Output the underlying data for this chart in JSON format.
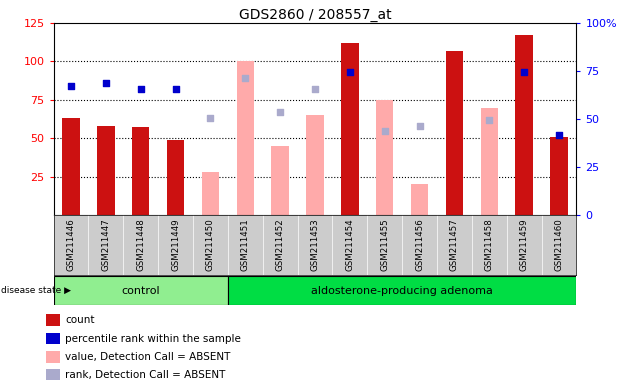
{
  "title": "GDS2860 / 208557_at",
  "samples": [
    "GSM211446",
    "GSM211447",
    "GSM211448",
    "GSM211449",
    "GSM211450",
    "GSM211451",
    "GSM211452",
    "GSM211453",
    "GSM211454",
    "GSM211455",
    "GSM211456",
    "GSM211457",
    "GSM211458",
    "GSM211459",
    "GSM211460"
  ],
  "count": [
    63,
    58,
    57,
    49,
    null,
    null,
    null,
    null,
    112,
    null,
    null,
    107,
    null,
    117,
    51
  ],
  "percentile_rank": [
    84,
    86,
    82,
    82,
    null,
    null,
    null,
    null,
    93,
    null,
    null,
    null,
    null,
    93,
    52
  ],
  "absent_value": [
    null,
    null,
    null,
    null,
    28,
    100,
    45,
    65,
    null,
    75,
    20,
    null,
    70,
    null,
    null
  ],
  "absent_rank": [
    null,
    null,
    null,
    null,
    63,
    89,
    67,
    82,
    null,
    55,
    58,
    null,
    62,
    null,
    null
  ],
  "detection_absent": [
    false,
    false,
    false,
    false,
    true,
    true,
    true,
    true,
    false,
    true,
    true,
    false,
    true,
    false,
    false
  ],
  "control_count": 5,
  "adenoma_count": 10,
  "ylim_left": [
    0,
    125
  ],
  "ylim_right": [
    0,
    100
  ],
  "yticks_left": [
    25,
    50,
    75,
    100,
    125
  ],
  "yticks_right": [
    0,
    25,
    50,
    75,
    100
  ],
  "bar_color_normal": "#cc1111",
  "bar_color_absent": "#ffaaaa",
  "dot_color_normal": "#0000cc",
  "dot_color_absent": "#aaaacc",
  "ctrl_color": "#90ee90",
  "aden_color": "#00dd44",
  "label_bg": "#cccccc",
  "legend_items": [
    [
      "#cc1111",
      "count"
    ],
    [
      "#0000cc",
      "percentile rank within the sample"
    ],
    [
      "#ffaaaa",
      "value, Detection Call = ABSENT"
    ],
    [
      "#aaaacc",
      "rank, Detection Call = ABSENT"
    ]
  ]
}
